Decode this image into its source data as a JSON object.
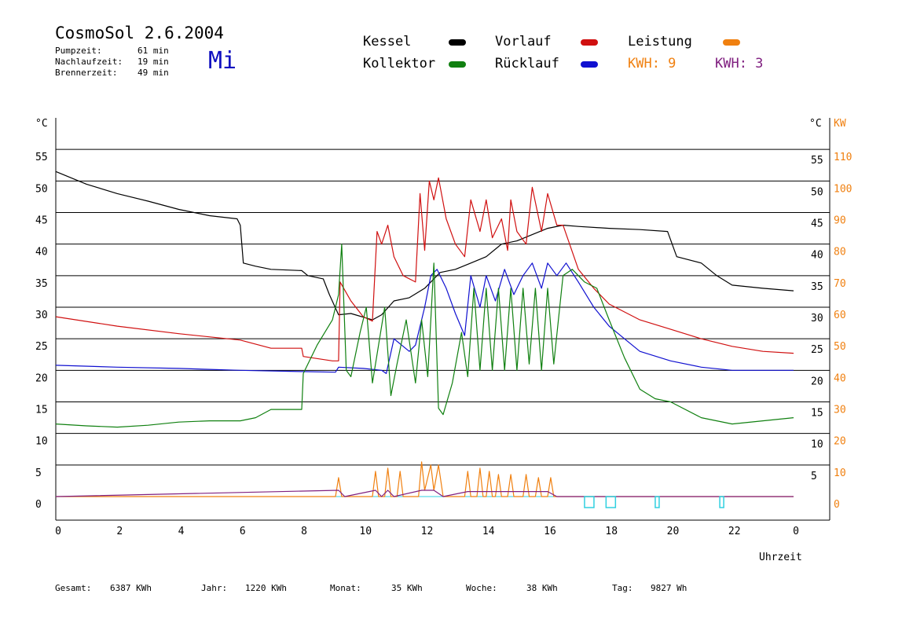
{
  "header": {
    "title": "CosmoSol 2.6.2004",
    "day": "Mi",
    "stats": [
      {
        "label": "Pumpzeit:",
        "value": "61 min"
      },
      {
        "label": "Nachlaufzeit:",
        "value": "19 min"
      },
      {
        "label": "Brennerzeit:",
        "value": "49 min"
      }
    ]
  },
  "legend": {
    "kessel": "Kessel",
    "kollektor": "Kollektor",
    "vorlauf": "Vorlauf",
    "ruecklauf": "Rücklauf",
    "leistung": "Leistung",
    "kwh1": "KWH: 9",
    "kwh2": "KWH: 3"
  },
  "colors": {
    "kessel": "#000000",
    "kollektor": "#108010",
    "vorlauf": "#d01010",
    "ruecklauf": "#1010d0",
    "leistung": "#f08010",
    "kwh2": "#802080",
    "zero": "#30d0e0"
  },
  "footer": [
    {
      "label": "Gesamt:",
      "value": "6387 KWh"
    },
    {
      "label": "Jahr:",
      "value": "1220 KWh"
    },
    {
      "label": "Monat:",
      "value": "35 KWh"
    },
    {
      "label": "Woche:",
      "value": "38 KWh"
    },
    {
      "label": "Tag:",
      "value": "9827 Wh"
    }
  ],
  "chart_data": {
    "type": "line",
    "xlabel": "Uhrzeit",
    "ylabel_left": "°C",
    "ylabel_right_temp": "°C",
    "ylabel_right_power": "KW",
    "xlim": [
      0,
      24
    ],
    "ylim": [
      0,
      60
    ],
    "x_ticks": [
      "0",
      "2",
      "4",
      "6",
      "8",
      "10",
      "12",
      "14",
      "16",
      "18",
      "20",
      "22",
      "0"
    ],
    "y_ticks_left": [
      "0",
      "5",
      "10",
      "15",
      "20",
      "25",
      "30",
      "35",
      "40",
      "45",
      "50",
      "55"
    ],
    "y_ticks_right_temp": [
      "5",
      "10",
      "15",
      "20",
      "25",
      "30",
      "35",
      "40",
      "45",
      "50",
      "55"
    ],
    "y_ticks_right_power": [
      "0",
      "10",
      "20",
      "30",
      "40",
      "50",
      "60",
      "70",
      "80",
      "90",
      "100",
      "110"
    ],
    "series": [
      {
        "name": "Kessel",
        "key": "kessel",
        "points": [
          [
            0,
            51.5
          ],
          [
            1,
            49.5
          ],
          [
            2,
            48
          ],
          [
            3,
            46.8
          ],
          [
            4,
            45.5
          ],
          [
            5,
            44.5
          ],
          [
            5.9,
            44
          ],
          [
            6,
            43
          ],
          [
            6.1,
            37
          ],
          [
            6.5,
            36.5
          ],
          [
            7,
            36
          ],
          [
            8,
            35.8
          ],
          [
            8.2,
            35
          ],
          [
            8.7,
            34.5
          ],
          [
            8.9,
            32
          ],
          [
            9.2,
            28.8
          ],
          [
            9.6,
            29
          ],
          [
            10.3,
            28
          ],
          [
            10.6,
            28.8
          ],
          [
            11,
            31
          ],
          [
            11.5,
            31.5
          ],
          [
            12,
            33
          ],
          [
            12.5,
            35.5
          ],
          [
            13,
            36
          ],
          [
            13.5,
            37
          ],
          [
            14,
            38
          ],
          [
            14.5,
            40
          ],
          [
            15,
            40.5
          ],
          [
            15.5,
            41.5
          ],
          [
            16,
            42.5
          ],
          [
            16.5,
            43
          ],
          [
            17,
            42.8
          ],
          [
            18,
            42.5
          ],
          [
            19,
            42.3
          ],
          [
            19.9,
            42
          ],
          [
            20.2,
            38
          ],
          [
            21,
            37
          ],
          [
            21.5,
            35
          ],
          [
            22,
            33.5
          ],
          [
            23,
            33
          ],
          [
            24,
            32.6
          ]
        ]
      },
      {
        "name": "Vorlauf",
        "key": "vorlauf",
        "points": [
          [
            0,
            28.5
          ],
          [
            2,
            27
          ],
          [
            4,
            25.8
          ],
          [
            6,
            24.8
          ],
          [
            7,
            23.5
          ],
          [
            8,
            23.5
          ],
          [
            8.05,
            22.2
          ],
          [
            9,
            21.5
          ],
          [
            9.2,
            21.5
          ],
          [
            9.25,
            34
          ],
          [
            9.6,
            31
          ],
          [
            10,
            28.5
          ],
          [
            10.3,
            27.8
          ],
          [
            10.45,
            42
          ],
          [
            10.6,
            40
          ],
          [
            10.8,
            43
          ],
          [
            11,
            38
          ],
          [
            11.3,
            35
          ],
          [
            11.7,
            34
          ],
          [
            11.85,
            48
          ],
          [
            12,
            39
          ],
          [
            12.15,
            50
          ],
          [
            12.3,
            47
          ],
          [
            12.45,
            50.5
          ],
          [
            12.7,
            44
          ],
          [
            13,
            40
          ],
          [
            13.3,
            38
          ],
          [
            13.5,
            47
          ],
          [
            13.8,
            42
          ],
          [
            14,
            47
          ],
          [
            14.2,
            41
          ],
          [
            14.5,
            44
          ],
          [
            14.7,
            39
          ],
          [
            14.8,
            47
          ],
          [
            15,
            42
          ],
          [
            15.3,
            40
          ],
          [
            15.5,
            49
          ],
          [
            15.8,
            42
          ],
          [
            16,
            48
          ],
          [
            16.3,
            43
          ],
          [
            16.5,
            43
          ],
          [
            17,
            36
          ],
          [
            17.5,
            33
          ],
          [
            18,
            30.5
          ],
          [
            19,
            28
          ],
          [
            20,
            26.5
          ],
          [
            21,
            25
          ],
          [
            22,
            23.8
          ],
          [
            23,
            23
          ],
          [
            24,
            22.7
          ]
        ]
      },
      {
        "name": "Rücklauf",
        "key": "ruecklauf",
        "points": [
          [
            0,
            20.8
          ],
          [
            2,
            20.5
          ],
          [
            4,
            20.3
          ],
          [
            6,
            20
          ],
          [
            8,
            19.8
          ],
          [
            9.1,
            19.7
          ],
          [
            9.2,
            20.5
          ],
          [
            10,
            20.3
          ],
          [
            10.6,
            20
          ],
          [
            10.75,
            19.5
          ],
          [
            11,
            25
          ],
          [
            11.5,
            23
          ],
          [
            11.7,
            24
          ],
          [
            12,
            30
          ],
          [
            12.2,
            35
          ],
          [
            12.4,
            36
          ],
          [
            12.7,
            33
          ],
          [
            13,
            29
          ],
          [
            13.3,
            25.5
          ],
          [
            13.5,
            35
          ],
          [
            13.8,
            30
          ],
          [
            14,
            35
          ],
          [
            14.3,
            31
          ],
          [
            14.6,
            36
          ],
          [
            14.9,
            32
          ],
          [
            15.2,
            35
          ],
          [
            15.5,
            37
          ],
          [
            15.8,
            33
          ],
          [
            16,
            37
          ],
          [
            16.3,
            35
          ],
          [
            16.6,
            37
          ],
          [
            17,
            34
          ],
          [
            17.5,
            30
          ],
          [
            18,
            27
          ],
          [
            18.5,
            25
          ],
          [
            19,
            23
          ],
          [
            20,
            21.5
          ],
          [
            21,
            20.5
          ],
          [
            22,
            20
          ],
          [
            23,
            20
          ],
          [
            24,
            20
          ]
        ]
      },
      {
        "name": "Kollektor",
        "key": "kollektor",
        "points": [
          [
            0,
            11.5
          ],
          [
            1,
            11.2
          ],
          [
            2,
            11
          ],
          [
            3,
            11.3
          ],
          [
            4,
            11.8
          ],
          [
            5,
            12
          ],
          [
            6,
            12
          ],
          [
            6.5,
            12.5
          ],
          [
            7,
            13.8
          ],
          [
            8,
            13.8
          ],
          [
            8.05,
            19.5
          ],
          [
            8.5,
            24
          ],
          [
            9,
            28
          ],
          [
            9.2,
            32
          ],
          [
            9.3,
            40
          ],
          [
            9.45,
            20
          ],
          [
            9.6,
            19
          ],
          [
            9.9,
            26
          ],
          [
            10.1,
            30
          ],
          [
            10.3,
            18
          ],
          [
            10.5,
            24
          ],
          [
            10.7,
            30
          ],
          [
            10.9,
            16
          ],
          [
            11.1,
            21
          ],
          [
            11.4,
            28
          ],
          [
            11.7,
            18
          ],
          [
            11.9,
            28
          ],
          [
            12.1,
            19
          ],
          [
            12.3,
            37
          ],
          [
            12.45,
            14
          ],
          [
            12.6,
            13
          ],
          [
            12.9,
            18
          ],
          [
            13.2,
            26
          ],
          [
            13.4,
            19
          ],
          [
            13.6,
            33
          ],
          [
            13.8,
            20
          ],
          [
            14,
            33
          ],
          [
            14.2,
            20
          ],
          [
            14.4,
            33
          ],
          [
            14.6,
            20
          ],
          [
            14.8,
            33
          ],
          [
            15,
            20
          ],
          [
            15.2,
            33
          ],
          [
            15.4,
            21
          ],
          [
            15.6,
            33
          ],
          [
            15.8,
            20
          ],
          [
            16,
            33
          ],
          [
            16.2,
            21
          ],
          [
            16.5,
            35
          ],
          [
            16.8,
            36
          ],
          [
            17.2,
            34
          ],
          [
            17.6,
            33
          ],
          [
            18,
            28
          ],
          [
            18.5,
            22
          ],
          [
            19,
            17
          ],
          [
            19.5,
            15.5
          ],
          [
            20,
            15
          ],
          [
            21,
            12.5
          ],
          [
            22,
            11.5
          ],
          [
            23,
            12
          ],
          [
            24,
            12.5
          ]
        ]
      },
      {
        "name": "Leistung",
        "key": "leistung",
        "points": [
          [
            0,
            0
          ],
          [
            9.1,
            0
          ],
          [
            9.2,
            3
          ],
          [
            9.3,
            0
          ],
          [
            10.3,
            0
          ],
          [
            10.4,
            4
          ],
          [
            10.5,
            0
          ],
          [
            10.7,
            0
          ],
          [
            10.8,
            4.5
          ],
          [
            10.9,
            0
          ],
          [
            11.1,
            0
          ],
          [
            11.2,
            4
          ],
          [
            11.3,
            0
          ],
          [
            11.8,
            0
          ],
          [
            11.9,
            5.5
          ],
          [
            12,
            1
          ],
          [
            12.2,
            5
          ],
          [
            12.3,
            1
          ],
          [
            12.45,
            5
          ],
          [
            12.6,
            0
          ],
          [
            13.3,
            0
          ],
          [
            13.4,
            4
          ],
          [
            13.5,
            0
          ],
          [
            13.7,
            0
          ],
          [
            13.8,
            4.5
          ],
          [
            13.9,
            0
          ],
          [
            14,
            0
          ],
          [
            14.1,
            4
          ],
          [
            14.2,
            0
          ],
          [
            14.3,
            0
          ],
          [
            14.4,
            3.5
          ],
          [
            14.5,
            0
          ],
          [
            14.7,
            0
          ],
          [
            14.8,
            3.5
          ],
          [
            14.9,
            0
          ],
          [
            15.2,
            0
          ],
          [
            15.3,
            3.5
          ],
          [
            15.4,
            0
          ],
          [
            15.6,
            0
          ],
          [
            15.7,
            3
          ],
          [
            15.8,
            0
          ],
          [
            16,
            0
          ],
          [
            16.1,
            3
          ],
          [
            16.2,
            0
          ],
          [
            24,
            0
          ]
        ]
      },
      {
        "name": "KWH 3",
        "key": "kwh2",
        "points": [
          [
            0,
            0
          ],
          [
            9.2,
            1
          ],
          [
            9.4,
            0
          ],
          [
            10.4,
            1
          ],
          [
            10.6,
            0
          ],
          [
            10.8,
            1
          ],
          [
            11,
            0
          ],
          [
            11.9,
            1
          ],
          [
            12.3,
            1
          ],
          [
            12.6,
            0
          ],
          [
            13.4,
            0.8
          ],
          [
            14,
            0.8
          ],
          [
            14.5,
            0.8
          ],
          [
            15,
            0.8
          ],
          [
            15.5,
            0.8
          ],
          [
            16,
            0.8
          ],
          [
            16.3,
            0
          ],
          [
            24,
            0
          ]
        ]
      }
    ]
  }
}
